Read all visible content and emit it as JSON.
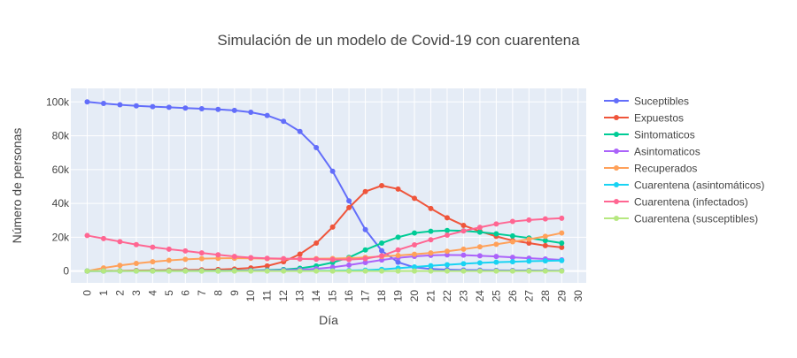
{
  "chart_data": {
    "type": "line",
    "title": "Simulación de un modelo de Covid-19 con cuarentena",
    "xlabel": "Día",
    "ylabel": "Número de personas",
    "x": [
      0,
      1,
      2,
      3,
      4,
      5,
      6,
      7,
      8,
      9,
      10,
      11,
      12,
      13,
      14,
      15,
      16,
      17,
      18,
      19,
      20,
      21,
      22,
      23,
      24,
      25,
      26,
      27,
      28,
      29
    ],
    "x_ticks": [
      0,
      1,
      2,
      3,
      4,
      5,
      6,
      7,
      8,
      9,
      10,
      11,
      12,
      13,
      14,
      15,
      16,
      17,
      18,
      19,
      20,
      21,
      22,
      23,
      24,
      25,
      26,
      27,
      28,
      29,
      30
    ],
    "xlim": [
      -1,
      30.5
    ],
    "ylim": [
      -7000,
      108000
    ],
    "y_ticks": [
      0,
      20000,
      40000,
      60000,
      80000,
      100000
    ],
    "y_tick_labels": [
      "0",
      "20k",
      "40k",
      "60k",
      "80k",
      "100k"
    ],
    "grid": true,
    "legend_position": "right",
    "plot_background": "#e5ecf6",
    "series": [
      {
        "name": "Suceptibles",
        "color": "#636efa",
        "values": [
          100000,
          99100,
          98300,
          97700,
          97200,
          96800,
          96400,
          96000,
          95600,
          95000,
          93900,
          92000,
          88500,
          82500,
          73000,
          59000,
          41500,
          24500,
          12000,
          5200,
          2200,
          1200,
          800,
          600,
          500,
          400,
          350,
          300,
          250,
          200
        ]
      },
      {
        "name": "Expuestos",
        "color": "#ef553b",
        "values": [
          0,
          100,
          200,
          300,
          400,
          500,
          600,
          700,
          900,
          1200,
          1800,
          3000,
          5500,
          10000,
          16500,
          26000,
          37500,
          47000,
          50500,
          48500,
          43000,
          37000,
          31500,
          27000,
          23500,
          20500,
          18000,
          16500,
          15000,
          14000
        ]
      },
      {
        "name": "Sintomaticos",
        "color": "#00cc96",
        "values": [
          0,
          0,
          50,
          50,
          100,
          100,
          150,
          200,
          250,
          300,
          400,
          600,
          900,
          1600,
          3000,
          5000,
          8000,
          12500,
          16500,
          20000,
          22500,
          23500,
          24000,
          23800,
          23000,
          22000,
          20800,
          19500,
          18000,
          16500
        ]
      },
      {
        "name": "Asintomaticos",
        "color": "#ab63fa",
        "values": [
          0,
          0,
          0,
          50,
          50,
          50,
          100,
          100,
          150,
          200,
          250,
          350,
          500,
          800,
          1300,
          2200,
          3500,
          5000,
          6500,
          7800,
          8700,
          9300,
          9500,
          9400,
          9000,
          8600,
          8100,
          7600,
          7100,
          6600
        ]
      },
      {
        "name": "Recuperados",
        "color": "#ffa15a",
        "values": [
          0,
          1800,
          3300,
          4500,
          5500,
          6300,
          6900,
          7300,
          7500,
          7600,
          7500,
          7300,
          7200,
          7200,
          7300,
          7400,
          7600,
          8000,
          8600,
          9200,
          9900,
          10700,
          11700,
          12900,
          14300,
          15800,
          17300,
          18800,
          20500,
          22500
        ]
      },
      {
        "name": "Cuarentena (asintomáticos)",
        "color": "#19d3f3",
        "values": [
          0,
          0,
          0,
          0,
          0,
          0,
          0,
          0,
          0,
          50,
          50,
          50,
          100,
          100,
          150,
          200,
          300,
          500,
          1000,
          1700,
          2400,
          3100,
          3700,
          4300,
          4800,
          5200,
          5500,
          5800,
          6000,
          6200
        ]
      },
      {
        "name": "Cuarentena (infectados)",
        "color": "#ff6692",
        "values": [
          21000,
          19200,
          17400,
          15600,
          14100,
          12900,
          11900,
          10700,
          9600,
          8600,
          7900,
          7500,
          7300,
          7200,
          7000,
          6800,
          6800,
          7300,
          9000,
          12500,
          15500,
          18500,
          21200,
          23700,
          25800,
          27800,
          29300,
          30200,
          30800,
          31200
        ]
      },
      {
        "name": "Cuarentena (susceptibles)",
        "color": "#b6e880",
        "values": [
          0,
          0,
          0,
          0,
          0,
          0,
          0,
          0,
          0,
          0,
          0,
          0,
          0,
          0,
          0,
          0,
          0,
          0,
          0,
          0,
          0,
          0,
          0,
          0,
          0,
          0,
          0,
          0,
          0,
          0
        ]
      }
    ]
  }
}
